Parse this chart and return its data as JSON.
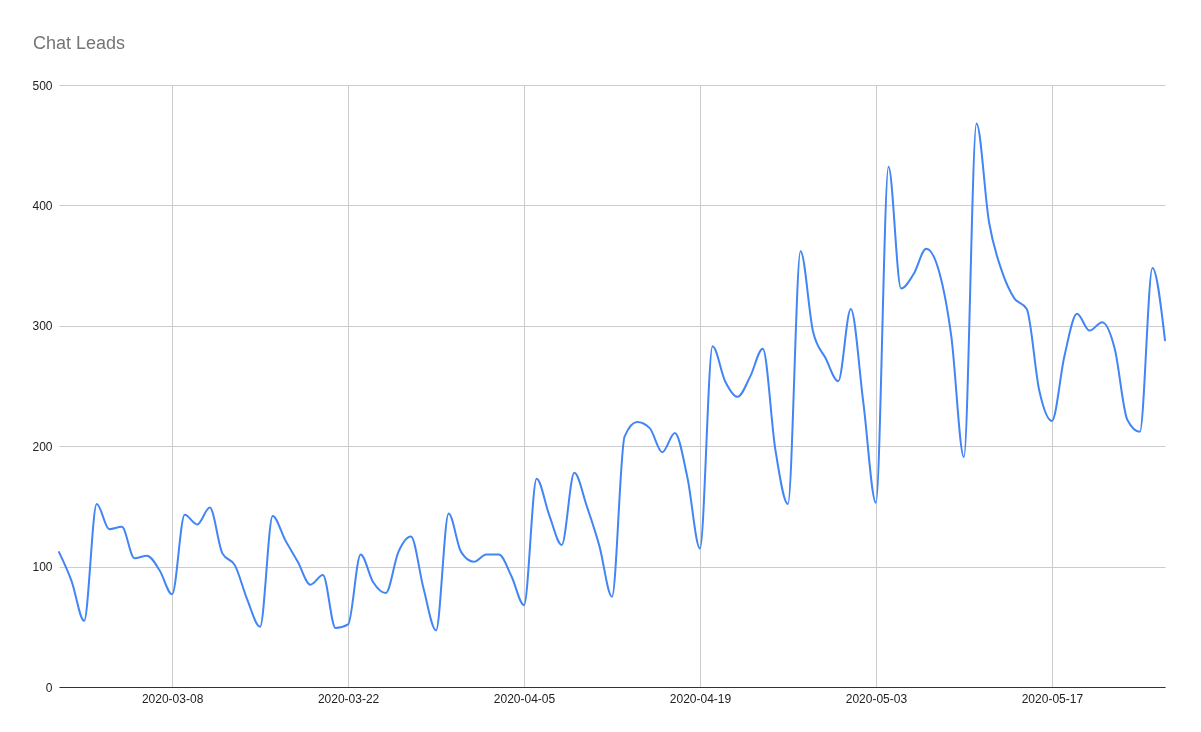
{
  "chart_data": {
    "type": "line",
    "title": "Chat Leads",
    "x": [
      "2020-02-28",
      "2020-02-29",
      "2020-03-01",
      "2020-03-02",
      "2020-03-03",
      "2020-03-04",
      "2020-03-05",
      "2020-03-06",
      "2020-03-07",
      "2020-03-08",
      "2020-03-09",
      "2020-03-10",
      "2020-03-11",
      "2020-03-12",
      "2020-03-13",
      "2020-03-14",
      "2020-03-15",
      "2020-03-16",
      "2020-03-17",
      "2020-03-18",
      "2020-03-19",
      "2020-03-20",
      "2020-03-21",
      "2020-03-22",
      "2020-03-23",
      "2020-03-24",
      "2020-03-25",
      "2020-03-26",
      "2020-03-27",
      "2020-03-28",
      "2020-03-29",
      "2020-03-30",
      "2020-03-31",
      "2020-04-01",
      "2020-04-02",
      "2020-04-03",
      "2020-04-04",
      "2020-04-05",
      "2020-04-06",
      "2020-04-07",
      "2020-04-08",
      "2020-04-09",
      "2020-04-10",
      "2020-04-11",
      "2020-04-12",
      "2020-04-13",
      "2020-04-14",
      "2020-04-15",
      "2020-04-16",
      "2020-04-17",
      "2020-04-18",
      "2020-04-19",
      "2020-04-20",
      "2020-04-21",
      "2020-04-22",
      "2020-04-23",
      "2020-04-24",
      "2020-04-25",
      "2020-04-26",
      "2020-04-27",
      "2020-04-28",
      "2020-04-29",
      "2020-04-30",
      "2020-05-01",
      "2020-05-02",
      "2020-05-03",
      "2020-05-04",
      "2020-05-05",
      "2020-05-06",
      "2020-05-07",
      "2020-05-08",
      "2020-05-09",
      "2020-05-10",
      "2020-05-11",
      "2020-05-12",
      "2020-05-13",
      "2020-05-14",
      "2020-05-15",
      "2020-05-16",
      "2020-05-17",
      "2020-05-18",
      "2020-05-19",
      "2020-05-20",
      "2020-05-21",
      "2020-05-22",
      "2020-05-23",
      "2020-05-24",
      "2020-05-25",
      "2020-05-26"
    ],
    "series": [
      {
        "color": "#4285f4",
        "values": [
          112,
          88,
          55,
          152,
          131,
          133,
          107,
          109,
          97,
          77,
          143,
          135,
          149,
          111,
          101,
          72,
          50,
          142,
          122,
          104,
          85,
          93,
          49,
          52,
          110,
          87,
          78,
          112,
          125,
          82,
          47,
          144,
          112,
          104,
          110,
          110,
          92,
          68,
          173,
          143,
          118,
          178,
          150,
          117,
          75,
          208,
          220,
          215,
          195,
          211,
          174,
          115,
          283,
          254,
          241,
          258,
          281,
          197,
          152,
          362,
          295,
          273,
          254,
          314,
          236,
          153,
          432,
          331,
          343,
          364,
          346,
          291,
          191,
          468,
          386,
          346,
          323,
          314,
          246,
          221,
          275,
          310,
          296,
          303,
          281,
          222,
          212,
          348,
          288
        ]
      }
    ],
    "xlim": [
      "2020-02-28",
      "2020-05-26"
    ],
    "xticks": [
      "2020-03-08",
      "2020-03-22",
      "2020-04-05",
      "2020-04-19",
      "2020-05-03",
      "2020-05-17"
    ],
    "ylim": [
      0,
      500
    ],
    "yticks": [
      0,
      100,
      200,
      300,
      400,
      500
    ],
    "grid": true,
    "line_style": "solid"
  }
}
